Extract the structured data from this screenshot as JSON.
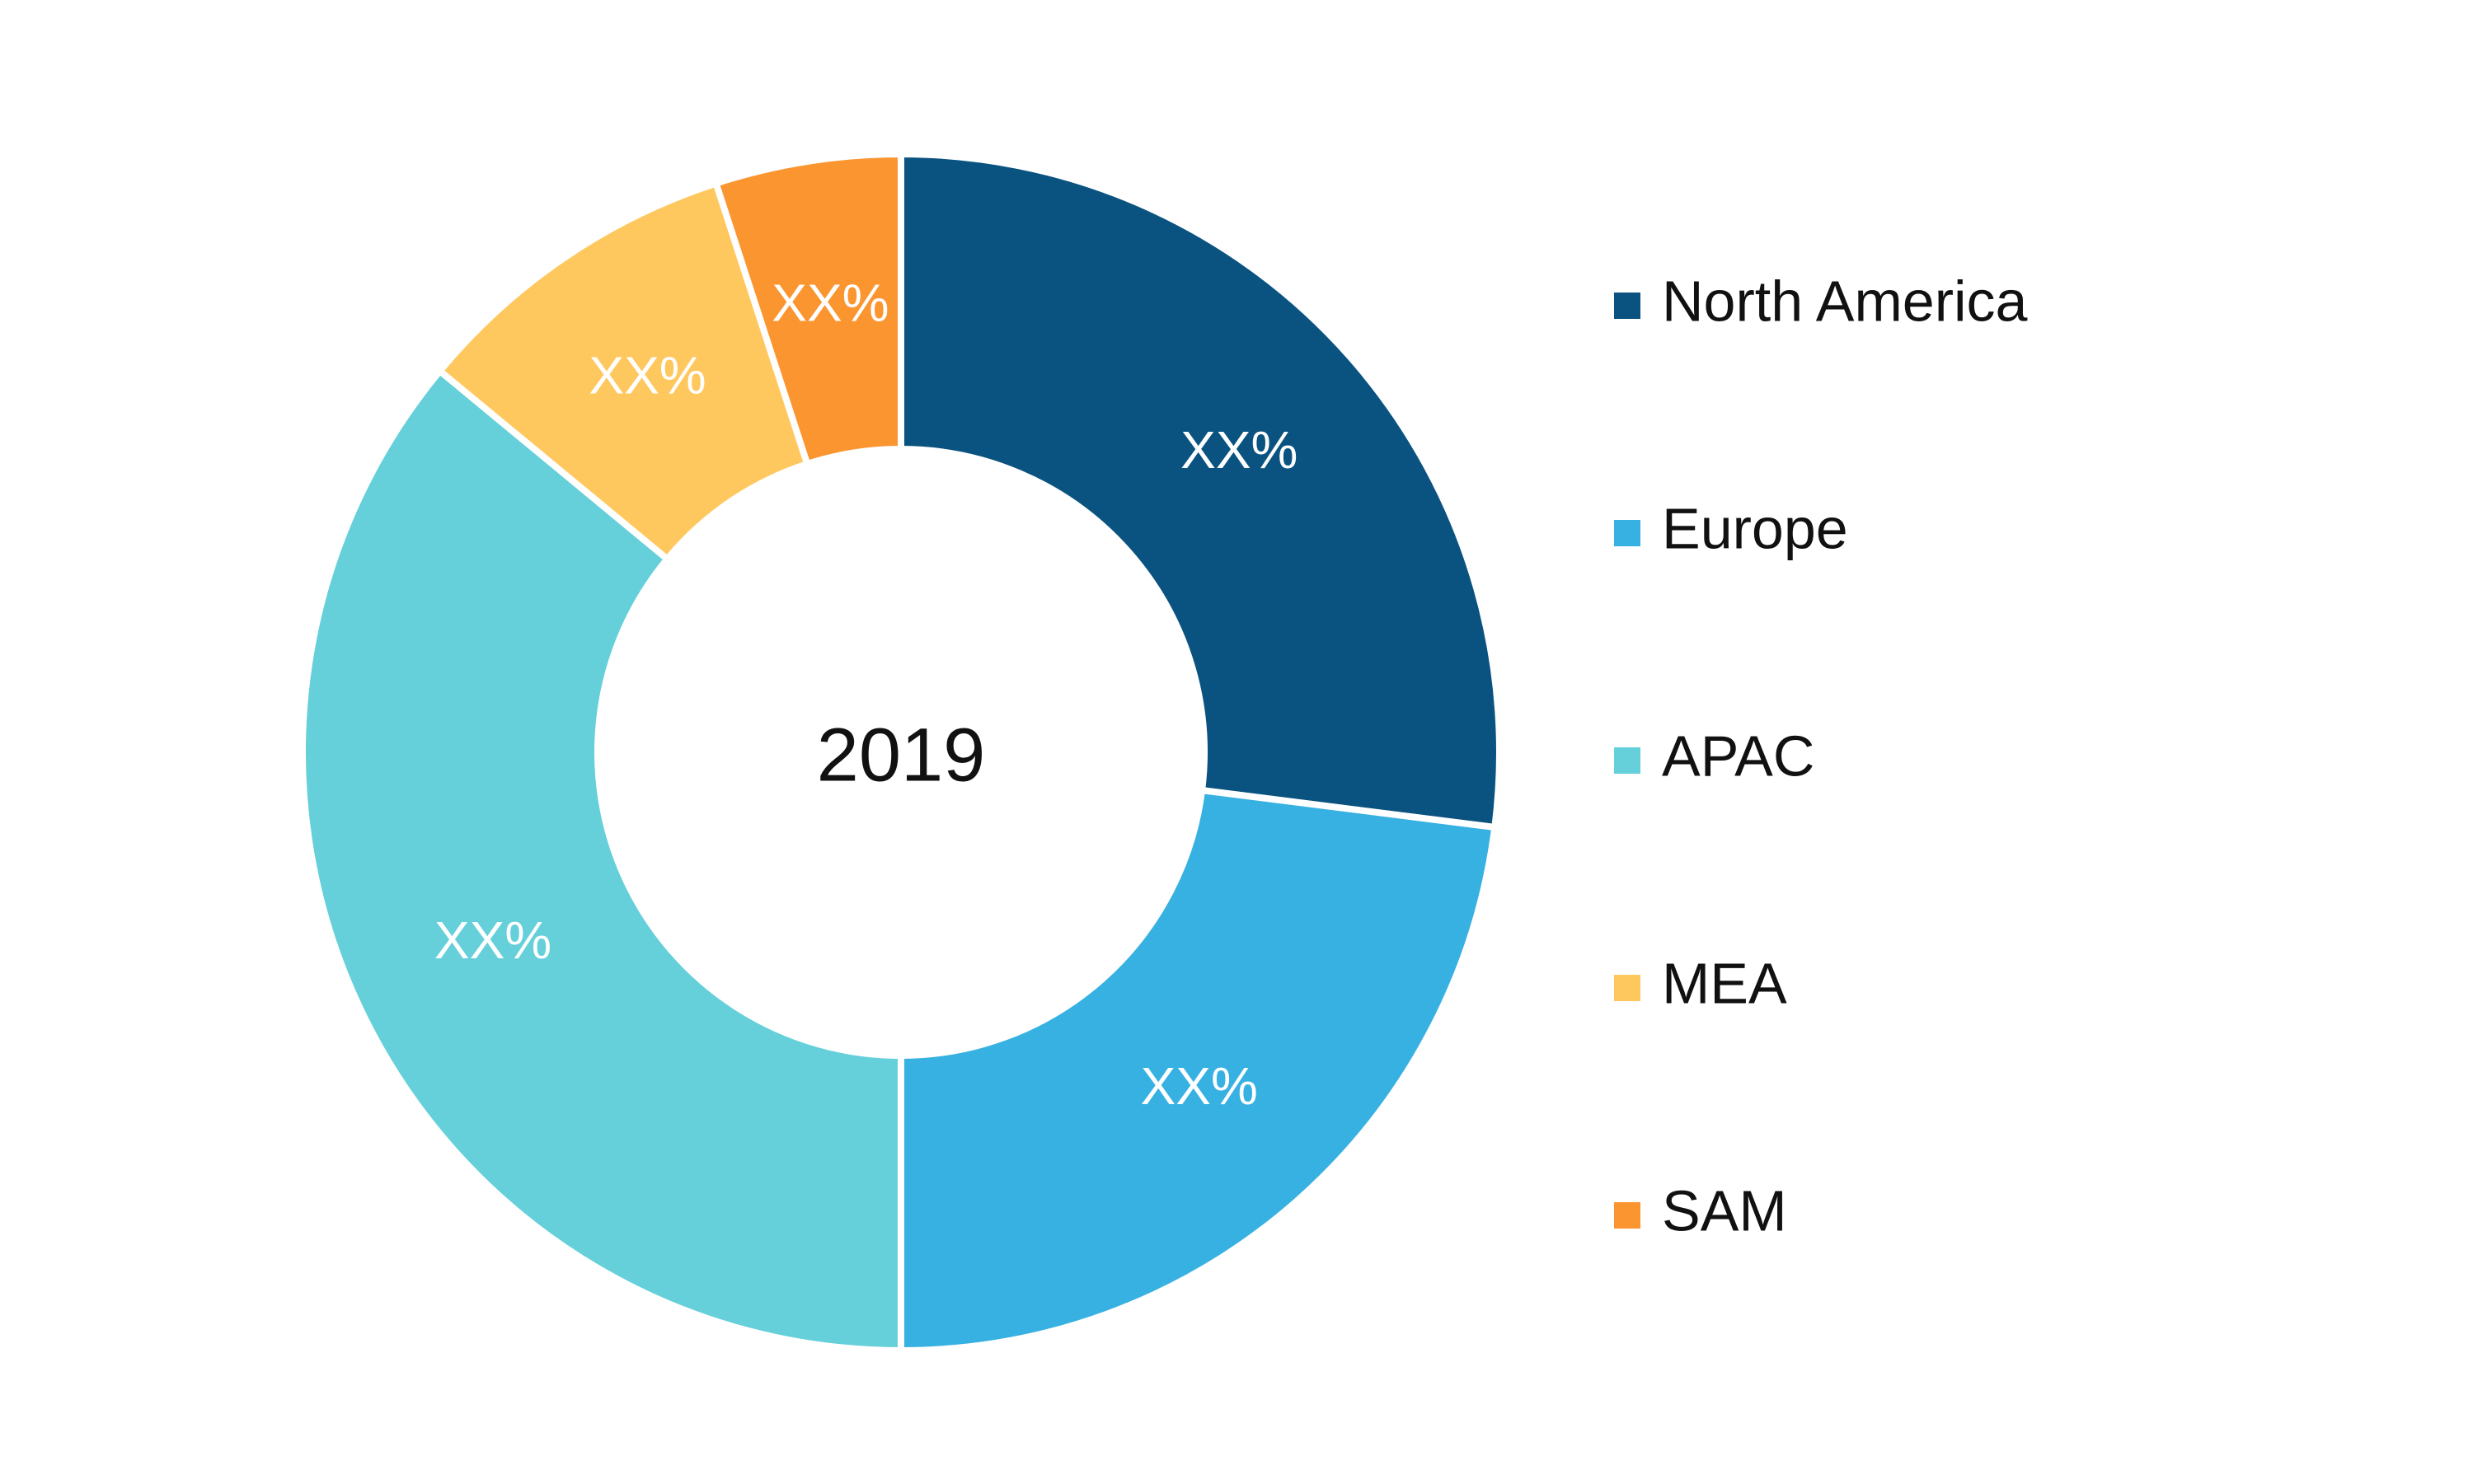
{
  "chart_data": {
    "type": "pie",
    "center_label": "2019",
    "categories": [
      "North America",
      "Europe",
      "APAC",
      "MEA",
      "SAM"
    ],
    "values": [
      27,
      23,
      36,
      9,
      5
    ],
    "value_labels": [
      "XX%",
      "XX%",
      "XX%",
      "XX%",
      "XX%"
    ],
    "colors": [
      "#0a5380",
      "#37b1e2",
      "#65d0da",
      "#fec85f",
      "#fb9530"
    ],
    "legend": "right"
  }
}
